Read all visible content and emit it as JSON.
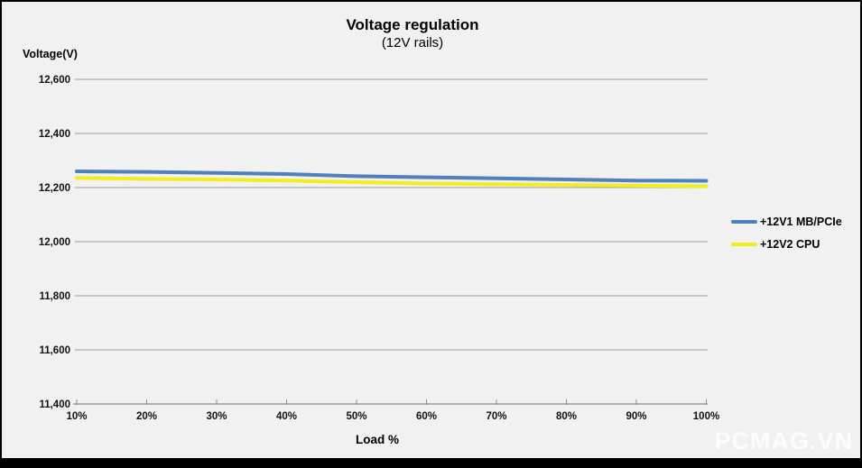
{
  "window": {
    "watermark": "PCMAG.VN"
  },
  "chart_data": {
    "type": "line",
    "title": "Voltage regulation",
    "subtitle": "(12V rails)",
    "ylabel": "Voltage(V)",
    "xlabel": "Load %",
    "x_categories": [
      "10%",
      "20%",
      "30%",
      "40%",
      "50%",
      "60%",
      "70%",
      "80%",
      "90%",
      "100%"
    ],
    "y_ticks": [
      12600,
      12400,
      12200,
      12000,
      11800,
      11600,
      11400
    ],
    "y_tick_labels": [
      "12,600",
      "12,400",
      "12,200",
      "12,000",
      "11,800",
      "11,600",
      "11,400"
    ],
    "ylim": [
      11400,
      12600
    ],
    "grid": "horizontal",
    "legend_position": "right",
    "background": "#f1f1f1",
    "gridline_color": "#9a9a9a",
    "axis_color": "#8c8c8c",
    "series": [
      {
        "name": "+12V1 MB/PCIe",
        "color": "#4f81bd",
        "values": [
          12260,
          12258,
          12254,
          12250,
          12242,
          12238,
          12234,
          12230,
          12226,
          12225
        ]
      },
      {
        "name": "+12V2 CPU",
        "color": "#f2ee1d",
        "values": [
          12236,
          12232,
          12230,
          12226,
          12220,
          12215,
          12212,
          12210,
          12207,
          12205
        ]
      }
    ]
  }
}
